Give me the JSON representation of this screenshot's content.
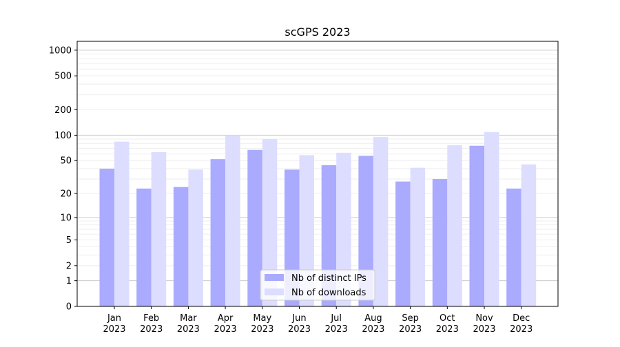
{
  "chart_data": {
    "type": "bar",
    "title": "scGPS 2023",
    "xlabel": "",
    "ylabel": "",
    "yscale": "log(1+y)",
    "ylim": [
      0,
      1270
    ],
    "yticks": [
      0,
      1,
      2,
      5,
      10,
      20,
      50,
      100,
      200,
      500,
      1000
    ],
    "grid": true,
    "legend_position": "bottom-center",
    "categories": [
      "Jan\n2023",
      "Feb\n2023",
      "Mar\n2023",
      "Apr\n2023",
      "May\n2023",
      "Jun\n2023",
      "Jul\n2023",
      "Aug\n2023",
      "Sep\n2023",
      "Oct\n2023",
      "Nov\n2023",
      "Dec\n2023"
    ],
    "series": [
      {
        "name": "Nb of distinct IPs",
        "color": "#aaaaff",
        "values": [
          40,
          23,
          24,
          52,
          67,
          39,
          44,
          57,
          28,
          30,
          75,
          23
        ]
      },
      {
        "name": "Nb of downloads",
        "color": "#ddddff",
        "values": [
          84,
          63,
          39,
          100,
          90,
          58,
          62,
          95,
          41,
          76,
          109,
          45
        ]
      }
    ]
  }
}
